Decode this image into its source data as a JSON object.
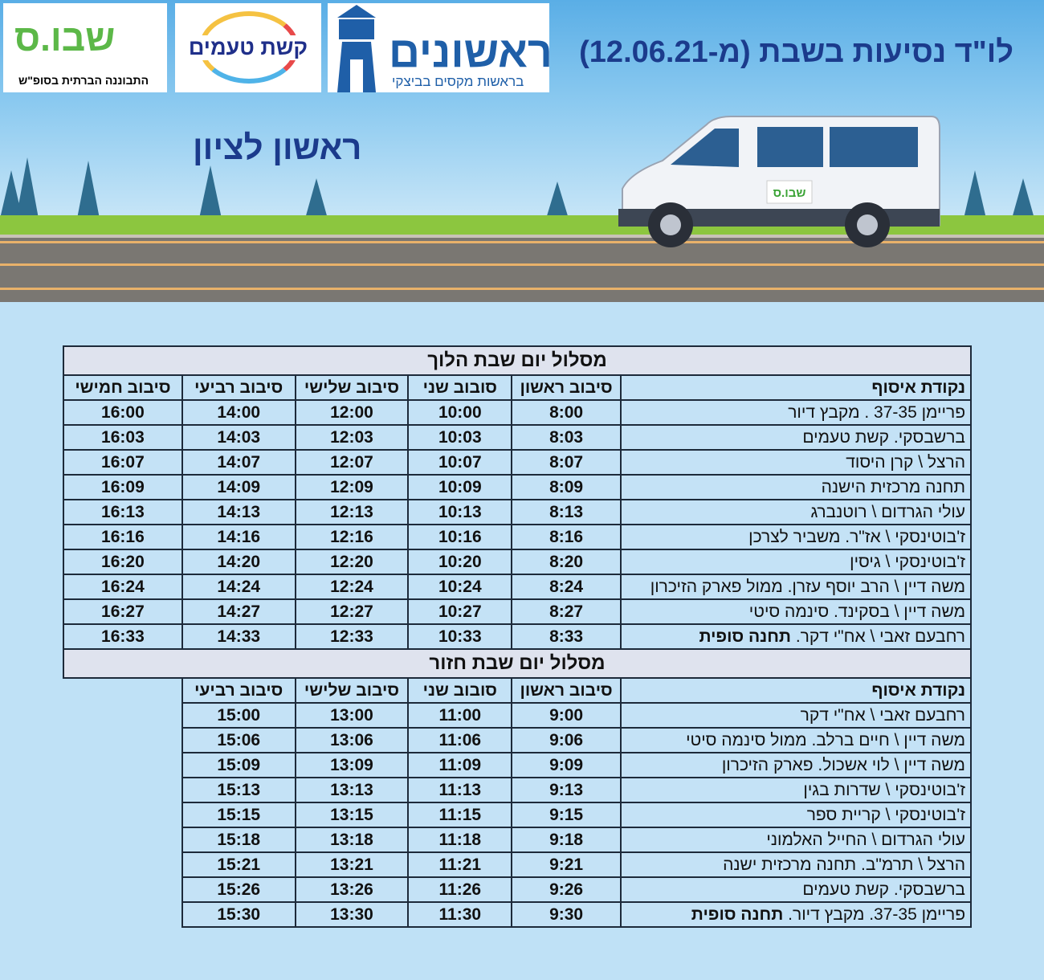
{
  "header": {
    "title": "לו\"ד נסיעות בשבת (מ-12.06.21)",
    "city": "ראשון לציון"
  },
  "logos": {
    "shvus": {
      "text": "שבו.ס",
      "sub": "התבוננה הברתית בסופ\"ש"
    },
    "keshet": {
      "text": "קשת טעמים"
    },
    "rishonim": {
      "text": "ראשונים",
      "sub": "בראשות מקסים בביצקי"
    },
    "van_logo": "שבו.ס"
  },
  "colors": {
    "title": "#1b3b8c",
    "cell": "#c4e2f6",
    "section": "#dfe3ee"
  },
  "outbound": {
    "title": "מסלול יום שבת הלוך",
    "headers": [
      "נקודת איסוף",
      "סיבוב ראשון",
      "סובוב שני",
      "סיבוב שלישי",
      "סיבוב רביעי",
      "סיבוב חמישי"
    ],
    "rows": [
      {
        "stop": "פריימן 37-35 . מקבץ דיור",
        "times": [
          "8:00",
          "10:00",
          "12:00",
          "14:00",
          "16:00"
        ]
      },
      {
        "stop": "ברשבסקי. קשת טעמים",
        "times": [
          "8:03",
          "10:03",
          "12:03",
          "14:03",
          "16:03"
        ]
      },
      {
        "stop": "הרצל \\ קרן היסוד",
        "times": [
          "8:07",
          "10:07",
          "12:07",
          "14:07",
          "16:07"
        ]
      },
      {
        "stop": "תחנה מרכזית הישנה",
        "times": [
          "8:09",
          "10:09",
          "12:09",
          "14:09",
          "16:09"
        ]
      },
      {
        "stop": "עולי הגרדום \\ רוטנברג",
        "times": [
          "8:13",
          "10:13",
          "12:13",
          "14:13",
          "16:13"
        ]
      },
      {
        "stop": "ז'בוטינסקי \\ אז\"ר. משביר לצרכן",
        "times": [
          "8:16",
          "10:16",
          "12:16",
          "14:16",
          "16:16"
        ]
      },
      {
        "stop": "ז'בוטינסקי \\ גיסין",
        "times": [
          "8:20",
          "10:20",
          "12:20",
          "14:20",
          "16:20"
        ]
      },
      {
        "stop": "משה דיין \\ הרב יוסף עזרן. ממול פארק הזיכרון",
        "times": [
          "8:24",
          "10:24",
          "12:24",
          "14:24",
          "16:24"
        ]
      },
      {
        "stop": "משה דיין \\ בסקינד. סינמה סיטי",
        "times": [
          "8:27",
          "10:27",
          "12:27",
          "14:27",
          "16:27"
        ]
      },
      {
        "stop": "רחבעם זאבי \\ אח\"י דקר.",
        "final": "תחנה סופית",
        "times": [
          "8:33",
          "10:33",
          "12:33",
          "14:33",
          "16:33"
        ]
      }
    ]
  },
  "return": {
    "title": "מסלול יום שבת חזור",
    "headers": [
      "נקודת איסוף",
      "סיבוב ראשון",
      "סובוב שני",
      "סיבוב שלישי",
      "סיבוב רביעי"
    ],
    "rows": [
      {
        "stop": "רחבעם זאבי \\ אח\"י דקר",
        "times": [
          "9:00",
          "11:00",
          "13:00",
          "15:00"
        ]
      },
      {
        "stop": "משה דיין \\ חיים ברלב. ממול סינמה סיטי",
        "times": [
          "9:06",
          "11:06",
          "13:06",
          "15:06"
        ]
      },
      {
        "stop": "משה דיין \\ לוי אשכול. פארק הזיכרון",
        "times": [
          "9:09",
          "11:09",
          "13:09",
          "15:09"
        ]
      },
      {
        "stop": "ז'בוטינסקי \\ שדרות בגין",
        "times": [
          "9:13",
          "11:13",
          "13:13",
          "15:13"
        ]
      },
      {
        "stop": "ז'בוטינסקי \\ קריית ספר",
        "times": [
          "9:15",
          "11:15",
          "13:15",
          "15:15"
        ]
      },
      {
        "stop": "עולי הגרדום \\ החייל האלמוני",
        "times": [
          "9:18",
          "11:18",
          "13:18",
          "15:18"
        ]
      },
      {
        "stop": "הרצל \\ תרמ\"ב. תחנה מרכזית ישנה",
        "times": [
          "9:21",
          "11:21",
          "13:21",
          "15:21"
        ]
      },
      {
        "stop": "ברשבסקי. קשת טעמים",
        "times": [
          "9:26",
          "11:26",
          "13:26",
          "15:26"
        ]
      },
      {
        "stop": "פריימן 37-35. מקבץ דיור.",
        "final": "תחנה סופית",
        "times": [
          "9:30",
          "11:30",
          "13:30",
          "15:30"
        ]
      }
    ]
  }
}
